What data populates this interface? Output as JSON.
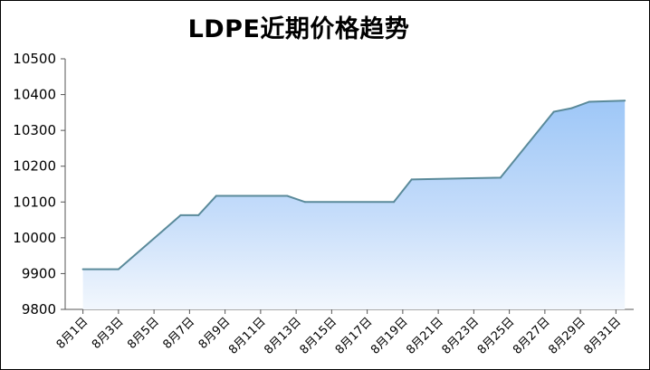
{
  "chart_data": {
    "type": "area",
    "title": "LDPE近期价格趋势",
    "xlabel": "",
    "ylabel": "",
    "ylim": [
      9800,
      10500
    ],
    "yticks": [
      9800,
      9900,
      10000,
      10100,
      10200,
      10300,
      10400,
      10500
    ],
    "grid": false,
    "legend": "none",
    "colors": {
      "line": "#5a8a9a",
      "fill_top": "#9ec7f7",
      "fill_bottom": "#f2f7fd"
    },
    "xtick_labels": [
      "8月1日",
      "8月3日",
      "8月5日",
      "8月7日",
      "8月9日",
      "8月11日",
      "8月13日",
      "8月15日",
      "8月17日",
      "8月19日",
      "8月21日",
      "8月23日",
      "8月25日",
      "8月27日",
      "8月29日",
      "8月31日"
    ],
    "series": [
      {
        "points": [
          {
            "day": 1,
            "value": 9912
          },
          {
            "day": 3,
            "value": 9912
          },
          {
            "day": 6.5,
            "value": 10063
          },
          {
            "day": 7.5,
            "value": 10063
          },
          {
            "day": 8.5,
            "value": 10117
          },
          {
            "day": 12.5,
            "value": 10117
          },
          {
            "day": 13.5,
            "value": 10100
          },
          {
            "day": 18.5,
            "value": 10100
          },
          {
            "day": 19.5,
            "value": 10163
          },
          {
            "day": 24.5,
            "value": 10168
          },
          {
            "day": 27.5,
            "value": 10352
          },
          {
            "day": 28.5,
            "value": 10362
          },
          {
            "day": 29.5,
            "value": 10380
          },
          {
            "day": 31.5,
            "value": 10383
          }
        ]
      }
    ]
  }
}
